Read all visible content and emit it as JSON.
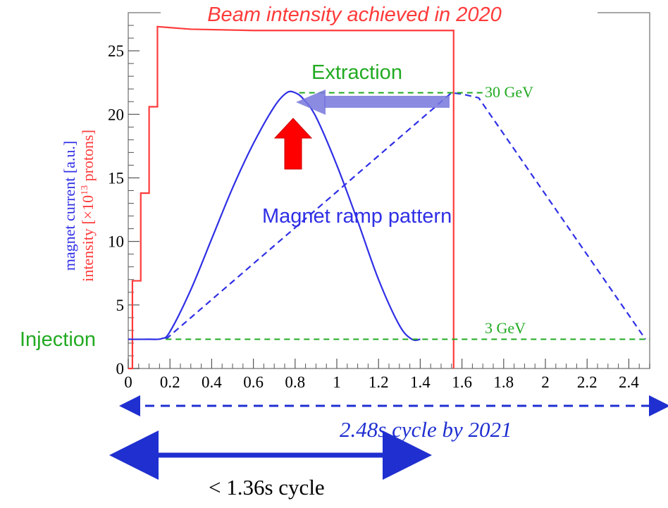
{
  "chart_data": {
    "type": "line",
    "title": "Beam intensity achieved in 2020",
    "ylabel_blue": "magnet current [a.u.]",
    "ylabel_red_prefix": "intensity [×10",
    "ylabel_red_sup": "13",
    "ylabel_red_suffix": " protons]",
    "xlim": [
      0,
      2.5
    ],
    "ylim": [
      0,
      28
    ],
    "x_ticks": [
      0,
      0.2,
      0.4,
      0.6,
      0.8,
      1,
      1.2,
      1.4,
      1.6,
      1.8,
      2,
      2.2,
      2.4
    ],
    "x_tick_labels": [
      "0",
      "0.2",
      "0.4",
      "0.6",
      "0.8",
      "1",
      "1.2",
      "1.4",
      "1.6",
      "1.8",
      "2",
      "2.2",
      "2.4"
    ],
    "y_ticks": [
      0,
      5,
      10,
      15,
      20,
      25
    ],
    "y_tick_labels": [
      "0",
      "5",
      "10",
      "15",
      "20",
      "25"
    ],
    "colors": {
      "intensity": "#ff3b3b",
      "magnet": "#2f2fe6",
      "energy": "#22aa22",
      "arrow_extraction": "#7777dd",
      "arrow_up": "#ff0000",
      "cycle": "#1f2fd0"
    },
    "series": [
      {
        "name": "intensity",
        "style": "solid",
        "x": [
          0,
          0.02,
          0.02,
          0.06,
          0.06,
          0.1,
          0.1,
          0.14,
          0.14,
          0.3,
          0.6,
          1.0,
          1.4,
          1.56,
          1.56
        ],
        "y": [
          0,
          0,
          6.9,
          6.9,
          13.8,
          13.8,
          20.6,
          20.6,
          26.9,
          26.7,
          26.6,
          26.6,
          26.6,
          26.6,
          0
        ]
      },
      {
        "name": "magnet_ramp_fast",
        "style": "solid",
        "x": [
          0,
          0.1,
          0.16,
          0.2,
          0.3,
          0.4,
          0.5,
          0.6,
          0.7,
          0.76,
          0.8,
          0.84,
          0.9,
          1.0,
          1.1,
          1.2,
          1.3,
          1.36,
          1.4
        ],
        "y": [
          2.3,
          2.3,
          2.35,
          2.9,
          6.2,
          10.2,
          14.2,
          17.7,
          20.6,
          21.7,
          21.7,
          21.2,
          19.8,
          16.0,
          11.6,
          7.0,
          3.4,
          2.3,
          2.3
        ]
      },
      {
        "name": "magnet_ramp_slow",
        "style": "dashed",
        "x": [
          0.18,
          1.55,
          1.6,
          1.68,
          2.48
        ],
        "y": [
          2.3,
          21.7,
          21.6,
          21.3,
          2.3
        ]
      },
      {
        "name": "energy_30",
        "style": "dashed",
        "x": [
          0.82,
          1.72
        ],
        "y": [
          21.7,
          21.7
        ]
      },
      {
        "name": "energy_3",
        "style": "dashed",
        "x": [
          0.18,
          2.5
        ],
        "y": [
          2.3,
          2.3
        ]
      }
    ],
    "annotations": {
      "extraction": "Extraction",
      "injection": "Injection",
      "gev_30": "30 GeV",
      "gev_3": "3 GeV",
      "ramp": "Magnet ramp pattern"
    },
    "cycles": {
      "slow": "2.48s cycle by 2021",
      "fast": "< 1.36s cycle"
    },
    "grid": false,
    "legend": "none"
  }
}
